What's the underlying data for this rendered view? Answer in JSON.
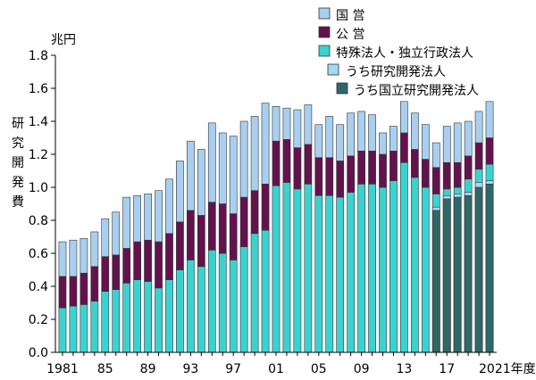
{
  "chart_data": {
    "type": "bar",
    "stacked": true,
    "y_unit_label": "兆円",
    "ylabel_chars": [
      "研",
      "究",
      "開",
      "発",
      "費"
    ],
    "ylim": [
      0,
      1.8
    ],
    "y_ticks": [
      "0.0",
      "0.2",
      "0.4",
      "0.6",
      "0.8",
      "1.0",
      "1.2",
      "1.4",
      "1.6",
      "1.8"
    ],
    "x_tick_labels": [
      {
        "year": 1981,
        "text": "1981"
      },
      {
        "year": 1985,
        "text": "85"
      },
      {
        "year": 1989,
        "text": "89"
      },
      {
        "year": 1993,
        "text": "93"
      },
      {
        "year": 1997,
        "text": "97"
      },
      {
        "year": 2001,
        "text": "01"
      },
      {
        "year": 2005,
        "text": "05"
      },
      {
        "year": 2009,
        "text": "09"
      },
      {
        "year": 2013,
        "text": "13"
      },
      {
        "year": 2017,
        "text": "17"
      },
      {
        "year": 2021,
        "text": "2021年度"
      }
    ],
    "categories": [
      1981,
      1982,
      1983,
      1984,
      1985,
      1986,
      1987,
      1988,
      1989,
      1990,
      1991,
      1992,
      1993,
      1994,
      1995,
      1996,
      1997,
      1998,
      1999,
      2000,
      2001,
      2002,
      2003,
      2004,
      2005,
      2006,
      2007,
      2008,
      2009,
      2010,
      2011,
      2012,
      2013,
      2014,
      2015,
      2016,
      2017,
      2018,
      2019,
      2020,
      2021
    ],
    "legend": [
      {
        "key": "kokuei",
        "label": "国 営",
        "color": "#a8cff0"
      },
      {
        "key": "koei",
        "label": "公 営",
        "color": "#64124e"
      },
      {
        "key": "tokushu",
        "label": "特殊法人・独立行政法人",
        "color": "#3ad2d0"
      },
      {
        "key": "kenkyu",
        "label": "うち研究開発法人",
        "color": "#9fd9f4"
      },
      {
        "key": "kokuritsu",
        "label": "うち国立研究開発法人",
        "color": "#2f6868"
      }
    ],
    "series": [
      {
        "key": "tokushu",
        "name": "特殊法人・独立行政法人",
        "values": [
          0.27,
          0.28,
          0.29,
          0.31,
          0.37,
          0.38,
          0.42,
          0.44,
          0.43,
          0.39,
          0.44,
          0.5,
          0.56,
          0.52,
          0.62,
          0.6,
          0.56,
          0.64,
          0.72,
          0.74,
          1.01,
          1.03,
          0.99,
          1.02,
          0.95,
          0.95,
          0.94,
          0.97,
          1.02,
          1.02,
          1.0,
          1.04,
          1.15,
          1.06,
          1.0,
          0.96,
          0.99,
          1.0,
          1.05,
          1.11,
          1.14
        ]
      },
      {
        "key": "koei",
        "name": "公 営",
        "values": [
          0.19,
          0.18,
          0.19,
          0.21,
          0.21,
          0.21,
          0.21,
          0.23,
          0.25,
          0.28,
          0.28,
          0.29,
          0.3,
          0.31,
          0.29,
          0.3,
          0.28,
          0.3,
          0.26,
          0.28,
          0.27,
          0.26,
          0.25,
          0.24,
          0.23,
          0.23,
          0.22,
          0.22,
          0.2,
          0.2,
          0.2,
          0.18,
          0.18,
          0.17,
          0.17,
          0.16,
          0.16,
          0.15,
          0.14,
          0.16,
          0.16
        ]
      },
      {
        "key": "kokuei",
        "name": "国 営",
        "values": [
          0.21,
          0.22,
          0.21,
          0.21,
          0.23,
          0.26,
          0.31,
          0.28,
          0.28,
          0.31,
          0.33,
          0.37,
          0.42,
          0.4,
          0.48,
          0.43,
          0.47,
          0.46,
          0.45,
          0.49,
          0.21,
          0.19,
          0.23,
          0.24,
          0.2,
          0.25,
          0.22,
          0.26,
          0.24,
          0.22,
          0.13,
          0.15,
          0.19,
          0.22,
          0.21,
          0.15,
          0.22,
          0.24,
          0.21,
          0.19,
          0.22
        ]
      }
    ],
    "overlay_start_index": 35,
    "overlay_series": [
      {
        "key": "kenkyu",
        "name": "うち研究開発法人",
        "values": [
          0.88,
          0.95,
          0.96,
          0.97,
          1.03,
          1.04
        ]
      },
      {
        "key": "kokuritsu",
        "name": "うち国立研究開発法人",
        "values": [
          0.86,
          0.93,
          0.94,
          0.95,
          1.0,
          1.02
        ]
      }
    ]
  }
}
